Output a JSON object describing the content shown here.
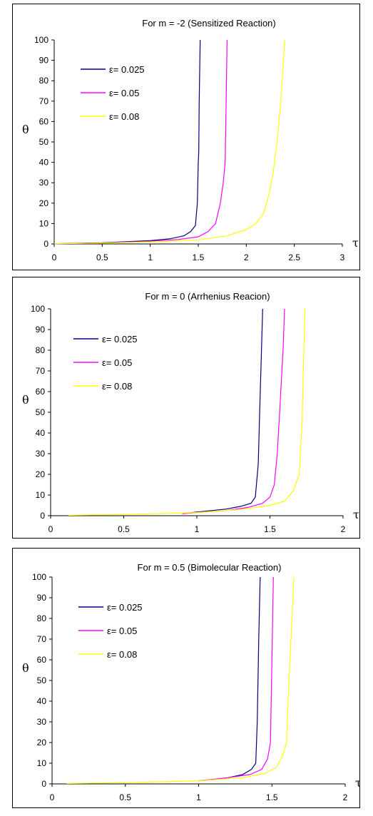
{
  "chart_data": [
    {
      "type": "line",
      "title": "For m = -2 (Sensitized Reaction)",
      "xlabel": "τ",
      "ylabel": "θ",
      "xlim": [
        0,
        3
      ],
      "ylim": [
        0,
        100
      ],
      "xticks": [
        "0",
        "0.5",
        "1",
        "1.5",
        "2",
        "2.5",
        "3"
      ],
      "yticks": [
        "0",
        "10",
        "20",
        "30",
        "40",
        "50",
        "60",
        "70",
        "80",
        "90",
        "100"
      ],
      "grid": false,
      "legend": "top-left",
      "series": [
        {
          "name": "ε= 0.025",
          "color": "#000080",
          "x": [
            0,
            0.5,
            1.0,
            1.2,
            1.35,
            1.42,
            1.47,
            1.49,
            1.5,
            1.505,
            1.51,
            1.52
          ],
          "y": [
            0.1,
            0.6,
            1.6,
            2.5,
            4.0,
            6.0,
            9.0,
            20,
            40,
            45,
            70,
            100
          ]
        },
        {
          "name": "ε= 0.05",
          "color": "#ff00ff",
          "x": [
            0,
            0.5,
            1.0,
            1.3,
            1.5,
            1.6,
            1.68,
            1.73,
            1.76,
            1.78,
            1.79,
            1.8
          ],
          "y": [
            0.1,
            0.5,
            1.3,
            2.2,
            3.5,
            6.0,
            10,
            20,
            30,
            40,
            70,
            100
          ]
        },
        {
          "name": "ε= 0.08",
          "color": "#ffff00",
          "x": [
            0,
            0.5,
            1.0,
            1.5,
            1.8,
            2.0,
            2.1,
            2.18,
            2.24,
            2.28,
            2.32,
            2.36,
            2.4
          ],
          "y": [
            0.1,
            0.4,
            1.0,
            2.0,
            4.0,
            7.0,
            10,
            15,
            25,
            35,
            50,
            70,
            100
          ]
        }
      ]
    },
    {
      "type": "line",
      "title": "For m = 0 (Arrhenius Reacion)",
      "xlabel": "τ",
      "ylabel": "θ",
      "xlim": [
        0,
        2
      ],
      "ylim": [
        0,
        100
      ],
      "xticks": [
        "0",
        "0.5",
        "1",
        "1.5",
        "2"
      ],
      "yticks": [
        "0",
        "10",
        "20",
        "30",
        "40",
        "50",
        "60",
        "70",
        "80",
        "90",
        "100"
      ],
      "grid": false,
      "legend": "top-left",
      "series": [
        {
          "name": "ε= 0.025",
          "color": "#000080",
          "x": [
            0.9,
            1.0,
            1.1,
            1.2,
            1.3,
            1.37,
            1.4,
            1.42,
            1.43,
            1.44,
            1.45
          ],
          "y": [
            1.0,
            1.8,
            2.5,
            3.2,
            4.5,
            6.0,
            9.0,
            25,
            50,
            75,
            100
          ]
        },
        {
          "name": "ε= 0.05",
          "color": "#ff00ff",
          "x": [
            0.9,
            1.0,
            1.2,
            1.35,
            1.45,
            1.5,
            1.53,
            1.55,
            1.57,
            1.59,
            1.6
          ],
          "y": [
            1.0,
            1.5,
            2.5,
            4.0,
            6.0,
            9.0,
            15,
            30,
            55,
            80,
            100
          ]
        },
        {
          "name": "ε= 0.08",
          "color": "#ffff00",
          "x": [
            0.12,
            0.5,
            1.0,
            1.3,
            1.5,
            1.6,
            1.66,
            1.7,
            1.72,
            1.73,
            1.74
          ],
          "y": [
            0.2,
            0.6,
            1.5,
            3.0,
            5.0,
            7.0,
            12,
            20,
            45,
            75,
            100
          ]
        }
      ]
    },
    {
      "type": "line",
      "title": "For m = 0.5 (Bimolecular Reaction)",
      "xlabel": "τ",
      "ylabel": "θ",
      "xlim": [
        0,
        2
      ],
      "ylim": [
        0,
        100
      ],
      "xticks": [
        "0",
        "0.5",
        "1",
        "1.5",
        "2"
      ],
      "yticks": [
        "0",
        "10",
        "20",
        "30",
        "40",
        "50",
        "60",
        "70",
        "80",
        "90",
        "100"
      ],
      "grid": false,
      "legend": "top-left",
      "series": [
        {
          "name": "ε= 0.025",
          "color": "#000080",
          "x": [
            1.0,
            1.1,
            1.2,
            1.3,
            1.36,
            1.39,
            1.4,
            1.41,
            1.42
          ],
          "y": [
            1.5,
            2.0,
            3.0,
            4.5,
            7.0,
            10,
            30,
            70,
            100
          ]
        },
        {
          "name": "ε= 0.05",
          "color": "#ff00ff",
          "x": [
            1.0,
            1.2,
            1.35,
            1.43,
            1.47,
            1.49,
            1.5,
            1.51
          ],
          "y": [
            1.5,
            3.0,
            4.5,
            7.0,
            12,
            20,
            60,
            100
          ]
        },
        {
          "name": "ε= 0.08",
          "color": "#ffff00",
          "x": [
            0.1,
            0.5,
            1.0,
            1.3,
            1.45,
            1.53,
            1.57,
            1.6,
            1.61,
            1.63,
            1.65
          ],
          "y": [
            0.2,
            0.6,
            1.5,
            3.0,
            5.0,
            8.0,
            13,
            20,
            40,
            70,
            100
          ]
        }
      ]
    }
  ]
}
